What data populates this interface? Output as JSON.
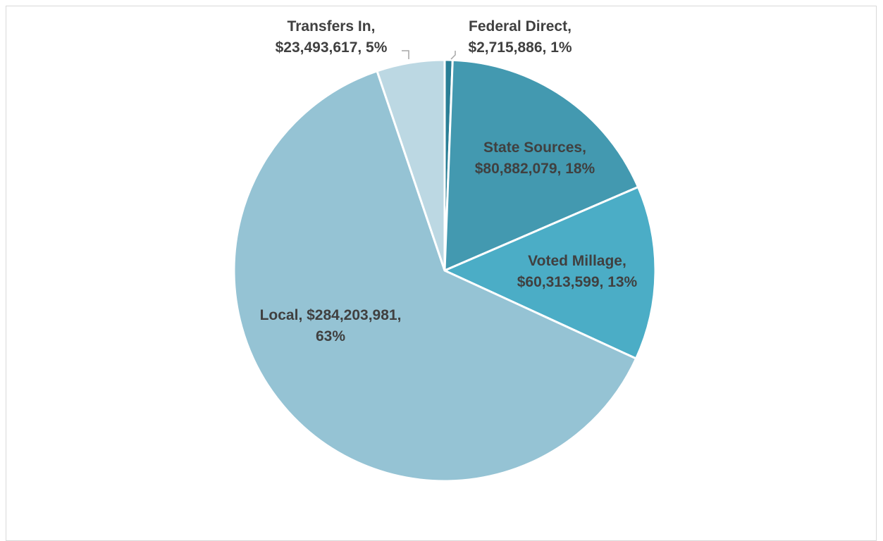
{
  "chart_data": {
    "type": "pie",
    "title": "",
    "start_angle_deg": 0,
    "direction": "clockwise",
    "slices": [
      {
        "name": "Federal Direct",
        "value": 2715886,
        "percent_label": "1%",
        "color": "#2a7f96",
        "label_lines": [
          "Federal Direct,",
          "$2,715,886, 1%"
        ]
      },
      {
        "name": "State Sources",
        "value": 80882079,
        "percent_label": "18%",
        "color": "#4399b0",
        "label_lines": [
          "State Sources,",
          "$80,882,079, 18%"
        ]
      },
      {
        "name": "Voted Millage",
        "value": 60313599,
        "percent_label": "13%",
        "color": "#4badc6",
        "label_lines": [
          "Voted Millage,",
          "$60,313,599, 13%"
        ]
      },
      {
        "name": "Local",
        "value": 284203981,
        "percent_label": "63%",
        "color": "#95c3d4",
        "label_lines": [
          "Local, $284,203,981,",
          "63%"
        ]
      },
      {
        "name": "Transfers In",
        "value": 23493617,
        "percent_label": "5%",
        "color": "#bcd8e3",
        "label_lines": [
          "Transfers In,",
          "$23,493,617, 5%"
        ]
      }
    ],
    "legend": "none"
  }
}
